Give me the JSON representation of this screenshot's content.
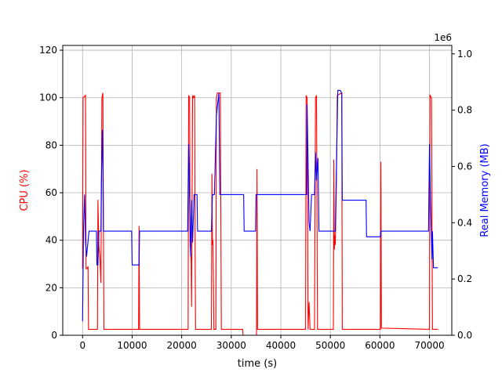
{
  "chart_data": {
    "type": "line",
    "xlabel": "time (s)",
    "ylabel_left": "CPU (%)",
    "ylabel_right": "Real Memory (MB)",
    "right_offset_text": "1e6",
    "xlim": [
      -4000,
      74500
    ],
    "ylim_left": [
      0,
      122
    ],
    "ylim_right": [
      0,
      1.03
    ],
    "x_ticks": [
      0,
      10000,
      20000,
      30000,
      40000,
      50000,
      60000,
      70000
    ],
    "y_ticks_left": [
      0,
      20,
      40,
      60,
      80,
      100,
      120
    ],
    "y_ticks_right": [
      0.0,
      0.2,
      0.4,
      0.6,
      0.8,
      1.0
    ],
    "grid": true,
    "colors": {
      "cpu": "#ff0000",
      "memory": "#0000ff",
      "axis_left_label": "#ff0000",
      "axis_right_label": "#0000ff"
    },
    "series": [
      {
        "axis": "left",
        "color": "#ff0000",
        "points": [
          [
            0,
            28
          ],
          [
            100,
            100
          ],
          [
            600,
            101
          ],
          [
            700,
            28
          ],
          [
            900,
            28
          ],
          [
            1100,
            29
          ],
          [
            1200,
            2.5
          ],
          [
            3000,
            2.5
          ],
          [
            3100,
            57
          ],
          [
            3300,
            37
          ],
          [
            3500,
            33
          ],
          [
            3700,
            22
          ],
          [
            3900,
            100
          ],
          [
            4100,
            102
          ],
          [
            4300,
            2.5
          ],
          [
            11300,
            2.5
          ],
          [
            11400,
            46
          ],
          [
            11500,
            2.5
          ],
          [
            21300,
            2.5
          ],
          [
            21400,
            101
          ],
          [
            21600,
            100
          ],
          [
            21700,
            38
          ],
          [
            21900,
            32
          ],
          [
            22000,
            12
          ],
          [
            22200,
            101
          ],
          [
            22400,
            100
          ],
          [
            22600,
            101
          ],
          [
            22700,
            38
          ],
          [
            22800,
            2.5
          ],
          [
            26000,
            2.5
          ],
          [
            26100,
            68
          ],
          [
            26200,
            38
          ],
          [
            26300,
            40
          ],
          [
            26400,
            23
          ],
          [
            26500,
            2.5
          ],
          [
            26900,
            2.5
          ],
          [
            27000,
            100
          ],
          [
            27200,
            102
          ],
          [
            27800,
            102
          ],
          [
            28000,
            2.5
          ],
          [
            32300,
            2.5
          ],
          [
            32400,
            0
          ],
          [
            35100,
            0
          ],
          [
            35200,
            70
          ],
          [
            35300,
            2.5
          ],
          [
            45000,
            2.5
          ],
          [
            45100,
            101
          ],
          [
            45300,
            100
          ],
          [
            45500,
            2.5
          ],
          [
            45700,
            14
          ],
          [
            45900,
            2.5
          ],
          [
            46800,
            2.5
          ],
          [
            47000,
            100
          ],
          [
            47200,
            101
          ],
          [
            47400,
            2.5
          ],
          [
            50600,
            2.5
          ],
          [
            50700,
            74
          ],
          [
            50800,
            36
          ],
          [
            50900,
            42
          ],
          [
            51000,
            38
          ],
          [
            51200,
            62
          ],
          [
            51400,
            101
          ],
          [
            52300,
            102
          ],
          [
            52400,
            2.5
          ],
          [
            60100,
            2.5
          ],
          [
            60200,
            73
          ],
          [
            60300,
            3
          ],
          [
            70000,
            2.5
          ],
          [
            70100,
            101
          ],
          [
            70400,
            100
          ],
          [
            70600,
            2.5
          ],
          [
            71700,
            2.5
          ]
        ]
      },
      {
        "axis": "right",
        "color": "#0000ff",
        "points": [
          [
            0,
            0.05
          ],
          [
            100,
            0.22
          ],
          [
            200,
            0.38
          ],
          [
            400,
            0.5
          ],
          [
            600,
            0.33
          ],
          [
            800,
            0.28
          ],
          [
            1300,
            0.37
          ],
          [
            2800,
            0.37
          ],
          [
            2900,
            0.25
          ],
          [
            3100,
            0.25
          ],
          [
            3300,
            0.37
          ],
          [
            3700,
            0.37
          ],
          [
            3800,
            0.55
          ],
          [
            4000,
            0.73
          ],
          [
            4100,
            0.6
          ],
          [
            4200,
            0.37
          ],
          [
            9900,
            0.37
          ],
          [
            10000,
            0.25
          ],
          [
            11400,
            0.25
          ],
          [
            11500,
            0.37
          ],
          [
            21200,
            0.37
          ],
          [
            21400,
            0.68
          ],
          [
            21600,
            0.48
          ],
          [
            21800,
            0.28
          ],
          [
            22000,
            0.48
          ],
          [
            22200,
            0.33
          ],
          [
            22500,
            0.5
          ],
          [
            23100,
            0.5
          ],
          [
            23200,
            0.37
          ],
          [
            26000,
            0.37
          ],
          [
            26200,
            0.5
          ],
          [
            26600,
            0.5
          ],
          [
            27000,
            0.78
          ],
          [
            27500,
            0.86
          ],
          [
            27700,
            0.5
          ],
          [
            32500,
            0.5
          ],
          [
            32600,
            0.37
          ],
          [
            34900,
            0.37
          ],
          [
            35000,
            0.5
          ],
          [
            45200,
            0.5
          ],
          [
            45300,
            0.82
          ],
          [
            45500,
            0.62
          ],
          [
            45700,
            0.4
          ],
          [
            45900,
            0.37
          ],
          [
            46200,
            0.5
          ],
          [
            46800,
            0.5
          ],
          [
            47000,
            0.65
          ],
          [
            47200,
            0.55
          ],
          [
            47500,
            0.63
          ],
          [
            47700,
            0.37
          ],
          [
            51000,
            0.37
          ],
          [
            51100,
            0.48
          ],
          [
            51500,
            0.87
          ],
          [
            52000,
            0.87
          ],
          [
            52300,
            0.86
          ],
          [
            52400,
            0.48
          ],
          [
            57200,
            0.48
          ],
          [
            57300,
            0.35
          ],
          [
            60100,
            0.35
          ],
          [
            60200,
            0.37
          ],
          [
            69800,
            0.37
          ],
          [
            70000,
            0.68
          ],
          [
            70200,
            0.48
          ],
          [
            70500,
            0.27
          ],
          [
            70600,
            0.37
          ],
          [
            70800,
            0.24
          ],
          [
            71700,
            0.24
          ]
        ]
      }
    ]
  }
}
